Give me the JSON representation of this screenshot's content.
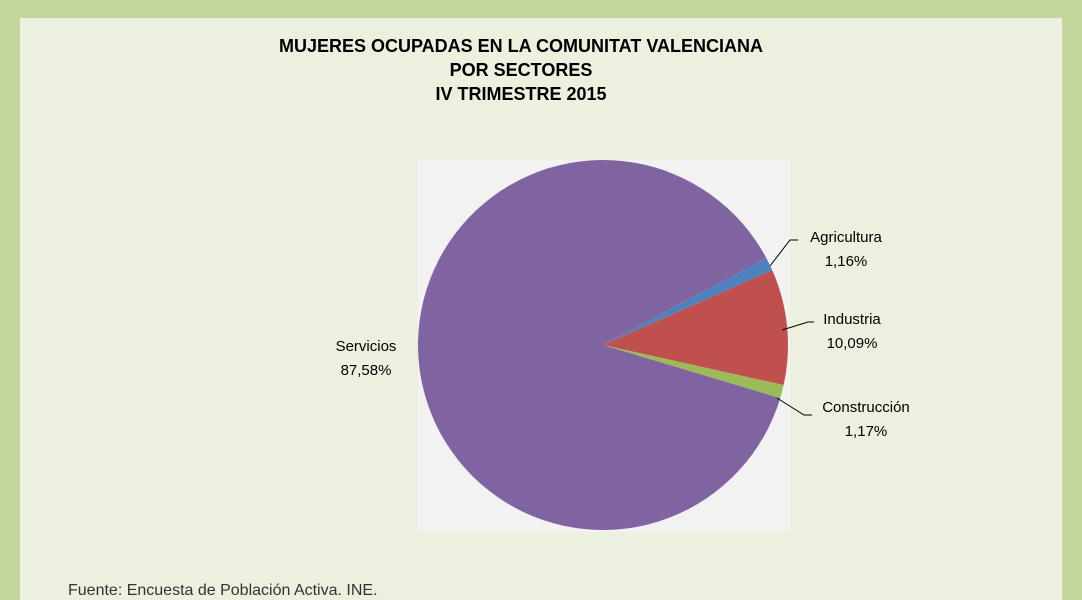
{
  "chart_data": {
    "type": "pie",
    "title": [
      "MUJERES OCUPADAS EN LA COMUNITAT VALENCIANA",
      "POR SECTORES",
      "IV TRIMESTRE 2015"
    ],
    "categories": [
      "Agricultura",
      "Industria",
      "Construcción",
      "Servicios"
    ],
    "values": [
      1.16,
      10.09,
      1.17,
      87.58
    ],
    "value_labels": [
      "1,16%",
      "10,09%",
      "1,17%",
      "87,58%"
    ],
    "colors": [
      "#4f81bd",
      "#c0504d",
      "#9bbb59",
      "#8064a2"
    ],
    "source": "Fuente: Encuesta de Población Activa. INE."
  }
}
